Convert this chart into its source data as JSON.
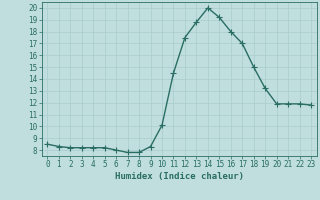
{
  "x": [
    0,
    1,
    2,
    3,
    4,
    5,
    6,
    7,
    8,
    9,
    10,
    11,
    12,
    13,
    14,
    15,
    16,
    17,
    18,
    19,
    20,
    21,
    22,
    23
  ],
  "y": [
    8.5,
    8.3,
    8.2,
    8.2,
    8.2,
    8.2,
    8.0,
    7.8,
    7.8,
    8.3,
    10.1,
    14.5,
    17.5,
    18.8,
    20.0,
    19.2,
    18.0,
    17.0,
    15.0,
    13.2,
    11.9,
    11.9,
    11.9,
    11.8
  ],
  "xlabel": "Humidex (Indice chaleur)",
  "line_color": "#2a6e63",
  "marker": "+",
  "marker_size": 4,
  "bg_color": "#c0dede",
  "grid_color": "#aacccc",
  "xlim": [
    -0.5,
    23.5
  ],
  "ylim": [
    7.5,
    20.5
  ],
  "yticks": [
    8,
    9,
    10,
    11,
    12,
    13,
    14,
    15,
    16,
    17,
    18,
    19,
    20
  ],
  "xticks": [
    0,
    1,
    2,
    3,
    4,
    5,
    6,
    7,
    8,
    9,
    10,
    11,
    12,
    13,
    14,
    15,
    16,
    17,
    18,
    19,
    20,
    21,
    22,
    23
  ],
  "tick_fontsize": 5.5,
  "xlabel_fontsize": 6.5
}
